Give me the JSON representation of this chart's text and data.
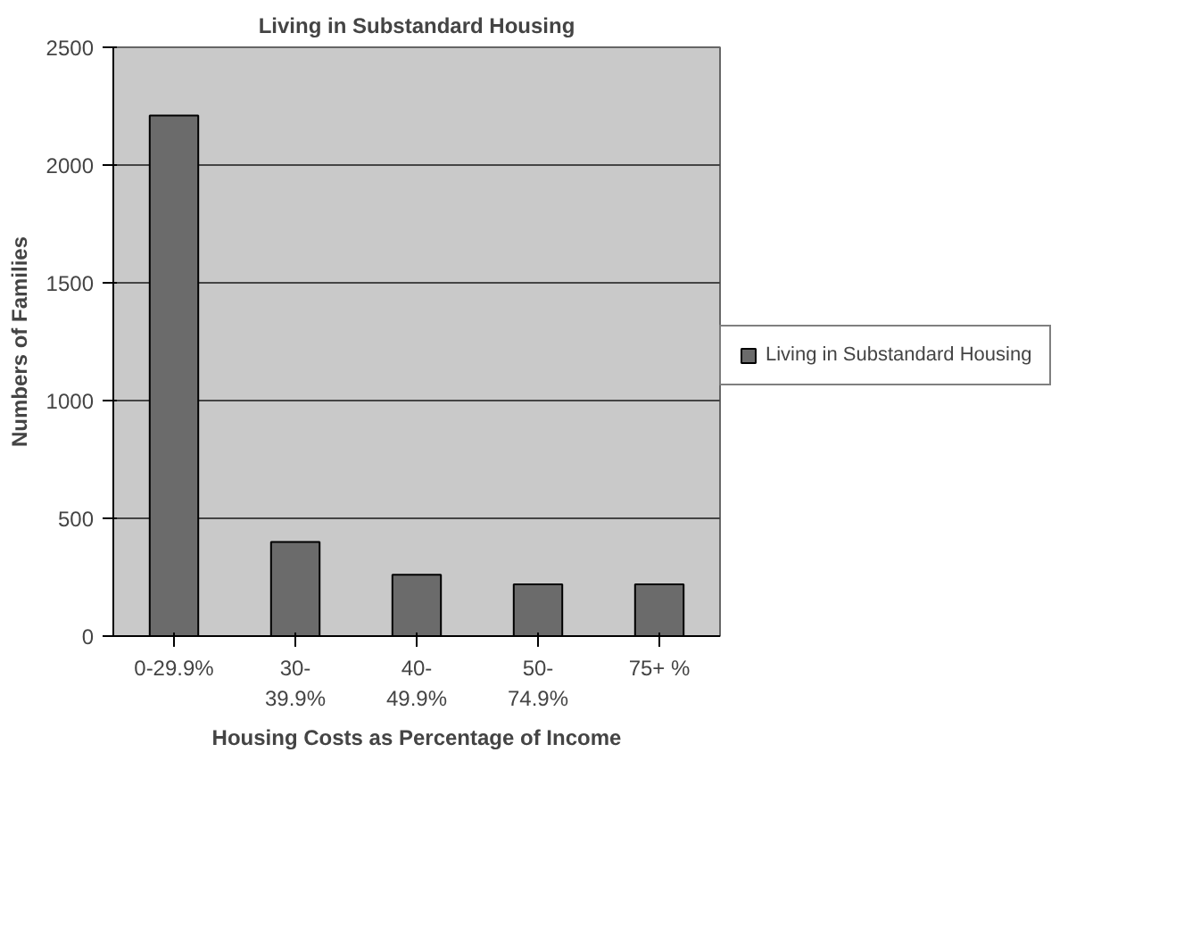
{
  "chart_data": {
    "type": "bar",
    "title": "Living in Substandard Housing",
    "xlabel": "Housing Costs as Percentage of Income",
    "ylabel": "Numbers of Families",
    "categories": [
      "0-29.9%",
      "30-39.9%",
      "40-49.9%",
      "50-74.9%",
      "75+ %"
    ],
    "series": [
      {
        "name": "Living in Substandard Housing",
        "color": "#6b6b6b",
        "values": [
          2210,
          400,
          260,
          220,
          220
        ]
      }
    ],
    "ylim": [
      0,
      2500
    ],
    "yticks": [
      0,
      500,
      1000,
      1500,
      2000,
      2500
    ],
    "grid": "y",
    "legend": "right"
  }
}
